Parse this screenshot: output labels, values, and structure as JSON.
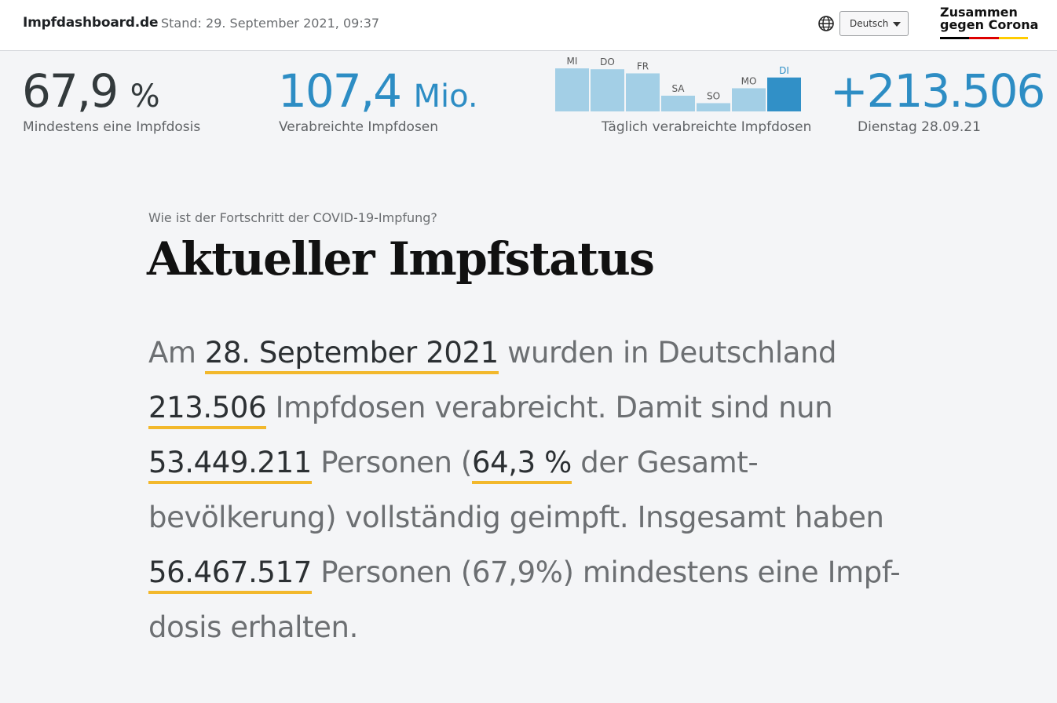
{
  "header": {
    "brand": "Impfdashboard.de",
    "stand": "Stand: 29. September 2021, 09:37",
    "language": "Deutsch",
    "logo_line1": "Zusammen",
    "logo_line2": "gegen Corona"
  },
  "stats": {
    "at_least_one": {
      "value": "67,9",
      "unit": "%",
      "label": "Mindestens eine Impfdosis"
    },
    "total_doses": {
      "value": "107,4",
      "unit": "Mio.",
      "label": "Verabreichte Impfdosen"
    },
    "daily": {
      "label": "Täglich verabreichte Impfdosen"
    },
    "latest": {
      "value": "+213.506",
      "label": "Dienstag 28.09.21"
    }
  },
  "chart_data": {
    "type": "bar",
    "categories": [
      "MI",
      "DO",
      "FR",
      "SA",
      "SO",
      "MO",
      "DI"
    ],
    "values": [
      52,
      51,
      46,
      19,
      10,
      28,
      41
    ],
    "highlight_index": 6,
    "title": "",
    "xlabel": "",
    "ylabel": "",
    "ylim": [
      0,
      55
    ]
  },
  "main": {
    "kicker": "Wie ist der Fortschritt der COVID-19-Impfung?",
    "headline": "Aktueller Impfstatus",
    "p": {
      "t1": "Am ",
      "date": "28. September 2021",
      "t2": " wurden in Deutschland ",
      "doses": "213.506",
      "t3": " Impfdosen verabreicht. Damit sind nun ",
      "full": "53.449.211",
      "t4": " Personen (",
      "full_pct": "64,3 %",
      "t5": " der Gesamt-bevölkerung) vollständig geimpft. Insgesamt haben ",
      "one": "56.467.517",
      "t6": " Personen (67,9%) mindestens eine Impf-dosis erhalten."
    }
  },
  "colors": {
    "accent_blue": "#2d8dc4",
    "bar_light": "#a3cfe6",
    "bar_active": "#3190c7",
    "underline": "#f2b82c"
  }
}
